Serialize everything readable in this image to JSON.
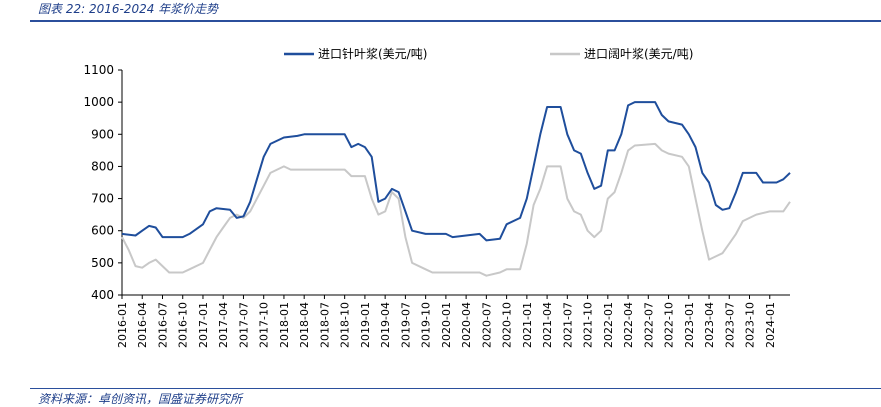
{
  "figure_title": "图表 22:  2016-2024 年浆价走势",
  "source": "资料来源：卓创资讯，国盛证券研究所",
  "chart_data": {
    "type": "line",
    "title": "",
    "xlabel": "",
    "ylabel": "",
    "ylim": [
      400,
      1100
    ],
    "yticks": [
      400,
      500,
      600,
      700,
      800,
      900,
      1000,
      1100
    ],
    "xlim": [
      "2016-01",
      "2024-04"
    ],
    "xtick_labels": [
      "2016-01",
      "2016-04",
      "2016-07",
      "2016-10",
      "2017-01",
      "2017-04",
      "2017-07",
      "2017-10",
      "2018-01",
      "2018-04",
      "2018-07",
      "2018-10",
      "2019-01",
      "2019-04",
      "2019-07",
      "2019-10",
      "2020-01",
      "2020-04",
      "2020-07",
      "2020-10",
      "2021-01",
      "2021-04",
      "2021-07",
      "2021-10",
      "2022-01",
      "2022-04",
      "2022-07",
      "2022-10",
      "2023-01",
      "2023-04",
      "2023-07",
      "2023-10",
      "2024-01"
    ],
    "grid": false,
    "legend_position": "top",
    "series": [
      {
        "name": "进口针叶浆(美元/吨)",
        "color": "#1f4e9c",
        "points": [
          [
            "2016-01",
            590
          ],
          [
            "2016-03",
            585
          ],
          [
            "2016-04",
            600
          ],
          [
            "2016-05",
            615
          ],
          [
            "2016-06",
            610
          ],
          [
            "2016-07",
            580
          ],
          [
            "2016-10",
            580
          ],
          [
            "2016-11",
            590
          ],
          [
            "2017-01",
            620
          ],
          [
            "2017-02",
            660
          ],
          [
            "2017-03",
            670
          ],
          [
            "2017-05",
            665
          ],
          [
            "2017-06",
            640
          ],
          [
            "2017-07",
            645
          ],
          [
            "2017-08",
            690
          ],
          [
            "2017-09",
            760
          ],
          [
            "2017-10",
            830
          ],
          [
            "2017-11",
            870
          ],
          [
            "2018-01",
            890
          ],
          [
            "2018-03",
            895
          ],
          [
            "2018-04",
            900
          ],
          [
            "2018-10",
            900
          ],
          [
            "2018-11",
            860
          ],
          [
            "2018-12",
            870
          ],
          [
            "2019-01",
            860
          ],
          [
            "2019-02",
            830
          ],
          [
            "2019-03",
            690
          ],
          [
            "2019-04",
            700
          ],
          [
            "2019-05",
            730
          ],
          [
            "2019-06",
            720
          ],
          [
            "2019-07",
            660
          ],
          [
            "2019-08",
            600
          ],
          [
            "2019-10",
            590
          ],
          [
            "2019-11",
            590
          ],
          [
            "2020-01",
            590
          ],
          [
            "2020-02",
            580
          ],
          [
            "2020-04",
            585
          ],
          [
            "2020-06",
            590
          ],
          [
            "2020-07",
            570
          ],
          [
            "2020-09",
            575
          ],
          [
            "2020-10",
            620
          ],
          [
            "2020-12",
            640
          ],
          [
            "2021-01",
            700
          ],
          [
            "2021-02",
            800
          ],
          [
            "2021-03",
            900
          ],
          [
            "2021-04",
            985
          ],
          [
            "2021-06",
            985
          ],
          [
            "2021-07",
            900
          ],
          [
            "2021-08",
            850
          ],
          [
            "2021-09",
            840
          ],
          [
            "2021-10",
            780
          ],
          [
            "2021-11",
            730
          ],
          [
            "2021-12",
            740
          ],
          [
            "2022-01",
            850
          ],
          [
            "2022-02",
            850
          ],
          [
            "2022-03",
            900
          ],
          [
            "2022-04",
            990
          ],
          [
            "2022-05",
            1000
          ],
          [
            "2022-08",
            1000
          ],
          [
            "2022-09",
            960
          ],
          [
            "2022-10",
            940
          ],
          [
            "2022-12",
            930
          ],
          [
            "2023-01",
            900
          ],
          [
            "2023-02",
            860
          ],
          [
            "2023-03",
            780
          ],
          [
            "2023-04",
            750
          ],
          [
            "2023-05",
            680
          ],
          [
            "2023-06",
            665
          ],
          [
            "2023-07",
            670
          ],
          [
            "2023-08",
            720
          ],
          [
            "2023-09",
            780
          ],
          [
            "2023-11",
            780
          ],
          [
            "2023-12",
            750
          ],
          [
            "2024-02",
            750
          ],
          [
            "2024-03",
            760
          ],
          [
            "2024-04",
            780
          ]
        ]
      },
      {
        "name": "进口阔叶浆(美元/吨)",
        "color": "#c8c8c8",
        "points": [
          [
            "2016-01",
            580
          ],
          [
            "2016-02",
            540
          ],
          [
            "2016-03",
            490
          ],
          [
            "2016-04",
            485
          ],
          [
            "2016-05",
            500
          ],
          [
            "2016-06",
            510
          ],
          [
            "2016-07",
            490
          ],
          [
            "2016-08",
            470
          ],
          [
            "2016-10",
            470
          ],
          [
            "2016-11",
            480
          ],
          [
            "2017-01",
            500
          ],
          [
            "2017-02",
            540
          ],
          [
            "2017-03",
            580
          ],
          [
            "2017-04",
            610
          ],
          [
            "2017-05",
            640
          ],
          [
            "2017-06",
            650
          ],
          [
            "2017-07",
            640
          ],
          [
            "2017-08",
            660
          ],
          [
            "2017-09",
            700
          ],
          [
            "2017-10",
            740
          ],
          [
            "2017-11",
            780
          ],
          [
            "2018-01",
            800
          ],
          [
            "2018-02",
            790
          ],
          [
            "2018-10",
            790
          ],
          [
            "2018-11",
            770
          ],
          [
            "2019-01",
            770
          ],
          [
            "2019-02",
            700
          ],
          [
            "2019-03",
            650
          ],
          [
            "2019-04",
            660
          ],
          [
            "2019-05",
            720
          ],
          [
            "2019-06",
            700
          ],
          [
            "2019-07",
            580
          ],
          [
            "2019-08",
            500
          ],
          [
            "2019-10",
            480
          ],
          [
            "2019-11",
            470
          ],
          [
            "2020-01",
            470
          ],
          [
            "2020-03",
            470
          ],
          [
            "2020-04",
            470
          ],
          [
            "2020-06",
            470
          ],
          [
            "2020-07",
            460
          ],
          [
            "2020-09",
            470
          ],
          [
            "2020-10",
            480
          ],
          [
            "2020-12",
            480
          ],
          [
            "2021-01",
            560
          ],
          [
            "2021-02",
            680
          ],
          [
            "2021-03",
            730
          ],
          [
            "2021-04",
            800
          ],
          [
            "2021-06",
            800
          ],
          [
            "2021-07",
            700
          ],
          [
            "2021-08",
            660
          ],
          [
            "2021-09",
            650
          ],
          [
            "2021-10",
            600
          ],
          [
            "2021-11",
            580
          ],
          [
            "2021-12",
            600
          ],
          [
            "2022-01",
            700
          ],
          [
            "2022-02",
            720
          ],
          [
            "2022-03",
            780
          ],
          [
            "2022-04",
            850
          ],
          [
            "2022-05",
            865
          ],
          [
            "2022-08",
            870
          ],
          [
            "2022-09",
            850
          ],
          [
            "2022-10",
            840
          ],
          [
            "2022-12",
            830
          ],
          [
            "2023-01",
            800
          ],
          [
            "2023-02",
            700
          ],
          [
            "2023-03",
            600
          ],
          [
            "2023-04",
            510
          ],
          [
            "2023-05",
            520
          ],
          [
            "2023-06",
            530
          ],
          [
            "2023-07",
            560
          ],
          [
            "2023-08",
            590
          ],
          [
            "2023-09",
            630
          ],
          [
            "2023-11",
            650
          ],
          [
            "2024-01",
            660
          ],
          [
            "2024-03",
            660
          ],
          [
            "2024-04",
            690
          ]
        ]
      }
    ]
  }
}
